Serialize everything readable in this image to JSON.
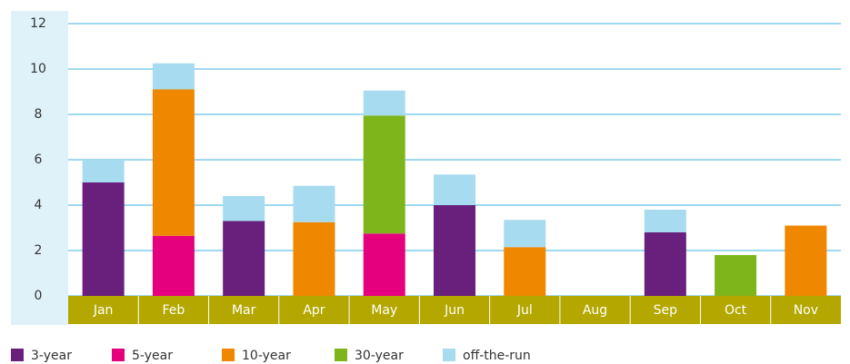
{
  "chart_data": {
    "type": "stacked_bar",
    "categories": [
      "Jan",
      "Feb",
      "Mar",
      "Apr",
      "May",
      "Jun",
      "Jul",
      "Aug",
      "Sep",
      "Oct",
      "Nov"
    ],
    "series": [
      {
        "name": "3-year",
        "color": "#68207c",
        "values": [
          5.0,
          null,
          3.3,
          null,
          null,
          4.0,
          null,
          null,
          2.8,
          null,
          null
        ]
      },
      {
        "name": "5-year",
        "color": "#e5007d",
        "values": [
          null,
          2.65,
          null,
          null,
          2.75,
          null,
          null,
          null,
          null,
          null,
          null
        ]
      },
      {
        "name": "10-year",
        "color": "#ef8700",
        "values": [
          null,
          6.45,
          null,
          3.25,
          null,
          null,
          2.15,
          null,
          null,
          null,
          3.1
        ]
      },
      {
        "name": "30-year",
        "color": "#7db51b",
        "values": [
          null,
          null,
          null,
          null,
          5.2,
          null,
          null,
          null,
          null,
          1.8,
          null
        ]
      },
      {
        "name": "off-the-run",
        "color": "#a7dbf0",
        "values": [
          1.0,
          1.15,
          1.1,
          1.6,
          1.1,
          1.35,
          1.2,
          null,
          1.0,
          null,
          null
        ]
      }
    ],
    "ylim": [
      0,
      12
    ],
    "yticks": [
      0,
      2,
      4,
      6,
      8,
      10,
      12
    ],
    "grid": true,
    "legend": "bottom"
  }
}
